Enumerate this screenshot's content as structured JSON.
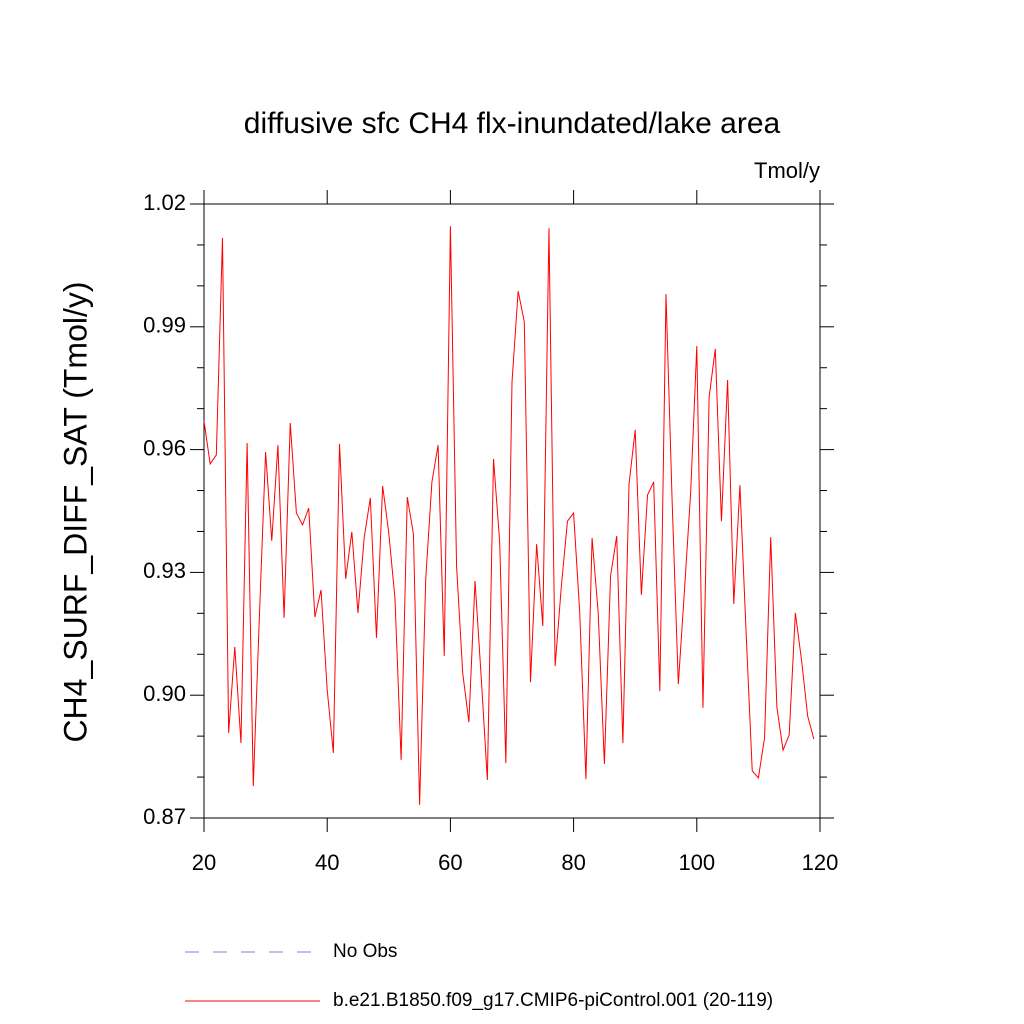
{
  "chart_data": {
    "type": "line",
    "title": "diffusive sfc CH4 flx-inundated/lake area",
    "units": "Tmol/y",
    "y_label": "CH4_SURF_DIFF_SAT  (Tmol/y)",
    "x": [
      20,
      21,
      22,
      23,
      24,
      25,
      26,
      27,
      28,
      29,
      30,
      31,
      32,
      33,
      34,
      35,
      36,
      37,
      38,
      39,
      40,
      41,
      42,
      43,
      44,
      45,
      46,
      47,
      48,
      49,
      50,
      51,
      52,
      53,
      54,
      55,
      56,
      57,
      58,
      59,
      60,
      61,
      62,
      63,
      64,
      65,
      66,
      67,
      68,
      69,
      70,
      71,
      72,
      73,
      74,
      75,
      76,
      77,
      78,
      79,
      80,
      81,
      82,
      83,
      84,
      85,
      86,
      87,
      88,
      89,
      90,
      91,
      92,
      93,
      94,
      95,
      96,
      97,
      98,
      99,
      100,
      101,
      102,
      103,
      104,
      105,
      106,
      107,
      108,
      109,
      110,
      111,
      112,
      113,
      114,
      115,
      116,
      117,
      118,
      119
    ],
    "series": [
      {
        "name": "b.e21.B1850.f09_g17.CMIP6-piControl.001 (20-119)",
        "color": "#ff0000",
        "values": [
          0.967,
          0.9565,
          0.9587,
          1.0117,
          0.8908,
          0.9118,
          0.8883,
          0.9616,
          0.8778,
          0.9196,
          0.9594,
          0.9377,
          0.9611,
          0.9189,
          0.9665,
          0.9445,
          0.9416,
          0.9457,
          0.9191,
          0.9257,
          0.9013,
          0.8859,
          0.9614,
          0.9284,
          0.9399,
          0.9201,
          0.9384,
          0.9482,
          0.914,
          0.9511,
          0.9396,
          0.9237,
          0.8842,
          0.9484,
          0.9394,
          0.8732,
          0.9286,
          0.9521,
          0.9611,
          0.9096,
          1.0146,
          0.9316,
          0.9054,
          0.8934,
          0.9279,
          0.9044,
          0.8793,
          0.9577,
          0.9374,
          0.8834,
          0.9765,
          0.9987,
          0.9912,
          0.9032,
          0.9369,
          0.9169,
          1.0141,
          0.9071,
          0.9264,
          0.9425,
          0.9445,
          0.9201,
          0.8795,
          0.9384,
          0.92,
          0.8832,
          0.9291,
          0.9389,
          0.8883,
          0.9516,
          0.9648,
          0.9245,
          0.9489,
          0.9521,
          0.901,
          0.998,
          0.9472,
          0.9027,
          0.9257,
          0.9494,
          0.9853,
          0.8969,
          0.9728,
          0.9846,
          0.9425,
          0.977,
          0.9223,
          0.9513,
          0.9154,
          0.8815,
          0.8798,
          0.8896,
          0.9386,
          0.8971,
          0.8866,
          0.8903,
          0.9201,
          0.9086,
          0.8949,
          0.8893
        ]
      }
    ],
    "extra_legend": [
      {
        "name": "No Obs",
        "color": "#8080d0",
        "style": "dashed"
      }
    ],
    "xlim": [
      20,
      120
    ],
    "xticks": [
      20,
      40,
      60,
      80,
      100,
      120
    ],
    "ylim": [
      0.87,
      1.02
    ],
    "yticks": [
      0.87,
      {
        "value": 0.9,
        "label": "0.90"
      },
      0.93,
      0.96,
      0.99,
      1.02
    ],
    "yminorticks": [
      0.88,
      0.89,
      0.91,
      0.92,
      0.94,
      0.95,
      0.97,
      0.98,
      1.0,
      1.01
    ]
  }
}
